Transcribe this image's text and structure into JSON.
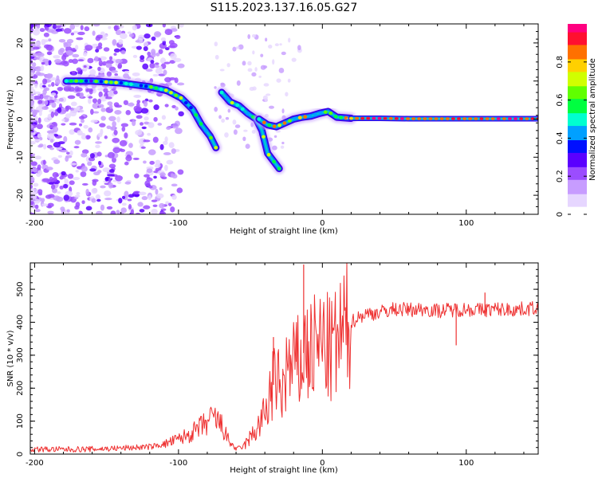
{
  "figure_title": "S115.2023.137.16.05.G27",
  "chart_data": [
    {
      "type": "heatmap",
      "xlabel": "Height of straight line (km)",
      "ylabel": "Frequency (Hz)",
      "xlim": [
        -203,
        150
      ],
      "ylim": [
        -25,
        25
      ],
      "x_ticks": [
        -200,
        -100,
        0,
        100
      ],
      "y_ticks": [
        -20,
        -10,
        0,
        10,
        20
      ],
      "colorbar": {
        "label": "Normalized spectral amplitude",
        "range": [
          0,
          1
        ],
        "ticks": [
          0,
          0.2,
          0.4,
          0.6,
          0.8
        ],
        "colors": [
          "#ffffff",
          "#e6d6ff",
          "#c79cff",
          "#9b4dff",
          "#5a00ff",
          "#0010ff",
          "#00a0ff",
          "#00ffd0",
          "#00ff40",
          "#60ff00",
          "#d0ff00",
          "#ffd000",
          "#ff7000",
          "#ff1030",
          "#ff0080"
        ]
      },
      "trace_segments": [
        {
          "x": [
            -178,
            -160,
            -140,
            -120,
            -108,
            -98,
            -90,
            -84,
            -78,
            -74
          ],
          "y": [
            10,
            10,
            9.5,
            8.5,
            7.5,
            5.5,
            2.5,
            -1.5,
            -4.5,
            -7.5
          ]
        },
        {
          "x": [
            -70,
            -64,
            -58,
            -52,
            -46,
            -42,
            -38,
            -34,
            -30
          ],
          "y": [
            7,
            4.5,
            3.5,
            1.5,
            0,
            -3,
            -9,
            -11,
            -13
          ]
        },
        {
          "x": [
            -44,
            -38,
            -32,
            -26,
            -20,
            -14,
            -8,
            -2,
            4,
            10,
            20
          ],
          "y": [
            0,
            -1.5,
            -2,
            -1,
            0,
            0.5,
            0.8,
            1.5,
            2,
            0.5,
            0.2
          ]
        },
        {
          "x": [
            20,
            40,
            60,
            80,
            100,
            120,
            150
          ],
          "y": [
            0.2,
            0.2,
            0.1,
            0.1,
            0.1,
            0.1,
            0.1
          ]
        }
      ]
    },
    {
      "type": "line",
      "xlabel": "Height of straight line (km)",
      "ylabel": "SNR (10 * v/v)",
      "xlim": [
        -203,
        150
      ],
      "ylim": [
        0,
        580
      ],
      "x_ticks": [
        -200,
        -100,
        0,
        100
      ],
      "y_ticks": [
        0,
        100,
        200,
        300,
        400,
        500
      ],
      "series": [
        {
          "color": "#ee3030",
          "x": [
            -203,
            -180,
            -160,
            -140,
            -120,
            -110,
            -100,
            -90,
            -80,
            -75,
            -70,
            -65,
            -60,
            -55,
            -50,
            -45,
            -40,
            -35,
            -32,
            -28,
            -25,
            -22,
            -18,
            -15,
            -12,
            -10,
            -5,
            0,
            5,
            10,
            15,
            20,
            25,
            30,
            40,
            50,
            60,
            70,
            80,
            90,
            100,
            110,
            120,
            130,
            140,
            150
          ],
          "y": [
            15,
            14,
            15,
            18,
            22,
            30,
            45,
            65,
            95,
            110,
            85,
            40,
            15,
            22,
            50,
            80,
            120,
            200,
            230,
            180,
            260,
            250,
            280,
            260,
            330,
            300,
            320,
            340,
            310,
            330,
            370,
            400,
            415,
            425,
            430,
            440,
            438,
            440,
            435,
            438,
            440,
            437,
            440,
            438,
            440,
            445
          ]
        }
      ],
      "spikes": [
        {
          "x": -13,
          "y": 575
        },
        {
          "x": -18,
          "y": 360
        },
        {
          "x": -34,
          "y": 355
        },
        {
          "x": 93,
          "y": 330
        },
        {
          "x": 113,
          "y": 490
        }
      ]
    }
  ]
}
